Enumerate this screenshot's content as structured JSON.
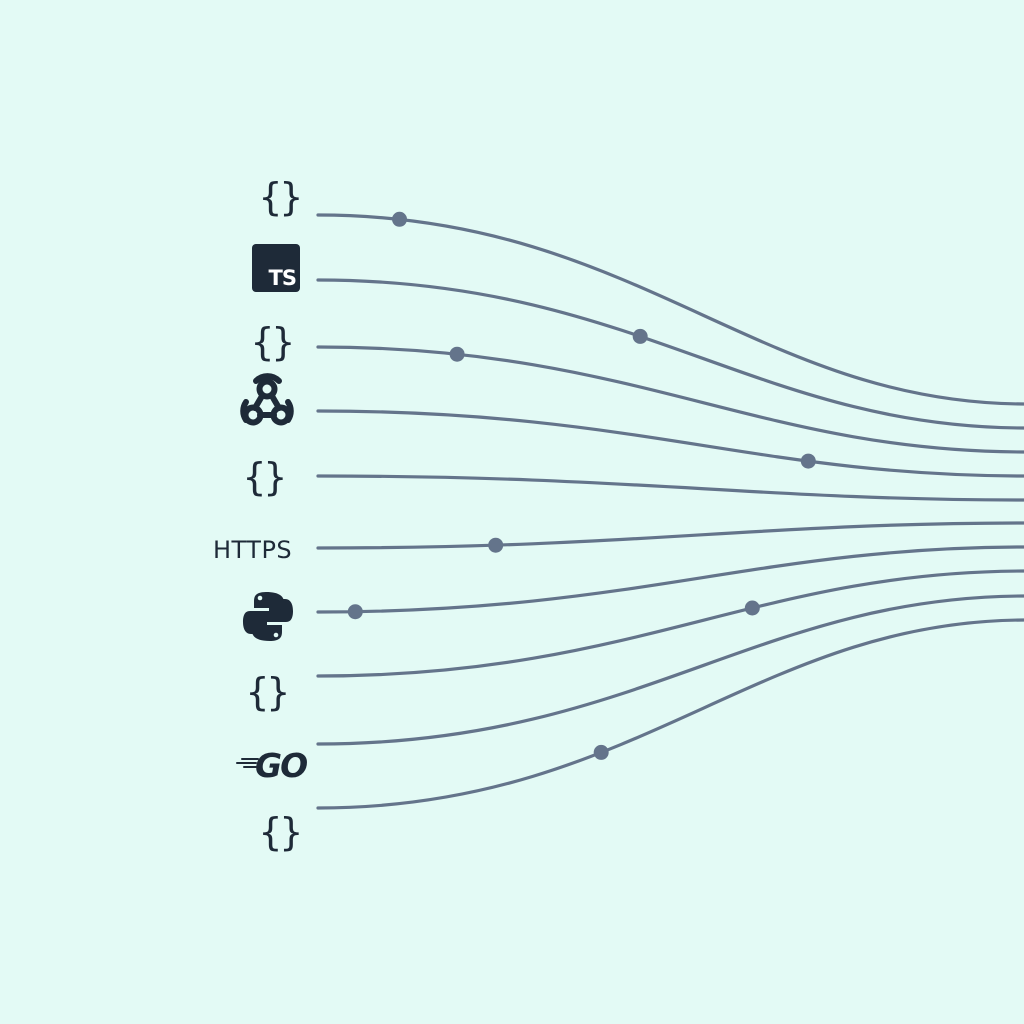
{
  "sources": [
    {
      "name": "json-braces-1",
      "kind": "braces",
      "text": "{}"
    },
    {
      "name": "typescript",
      "kind": "badge",
      "text": "TS",
      "icon": "typescript-icon"
    },
    {
      "name": "json-braces-2",
      "kind": "braces",
      "text": "{}"
    },
    {
      "name": "webhook",
      "kind": "icon",
      "icon": "webhook-icon"
    },
    {
      "name": "json-braces-3",
      "kind": "braces",
      "text": "{}"
    },
    {
      "name": "https",
      "kind": "text",
      "text": "HTTPS"
    },
    {
      "name": "python",
      "kind": "icon",
      "icon": "python-icon"
    },
    {
      "name": "json-braces-4",
      "kind": "braces",
      "text": "{}"
    },
    {
      "name": "go",
      "kind": "icon",
      "text": "GO",
      "icon": "go-logo-icon"
    },
    {
      "name": "json-braces-5",
      "kind": "braces",
      "text": "{}"
    }
  ],
  "colors": {
    "background": "#e3faf5",
    "line": "#64748b",
    "dot": "#64748b",
    "icon": "#1e2a38"
  }
}
